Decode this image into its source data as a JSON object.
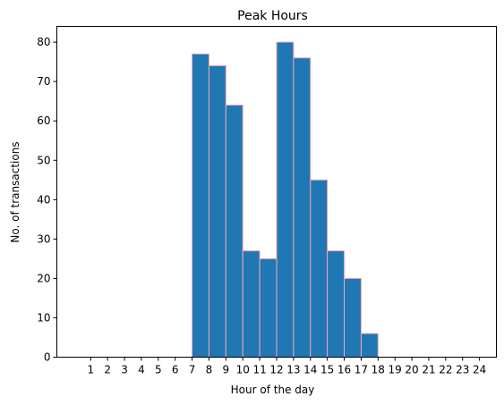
{
  "chart_data": {
    "type": "bar",
    "title": "Peak Hours",
    "xlabel": "Hour of the day",
    "ylabel": "No. of transactions",
    "categories": [
      "7",
      "8",
      "9",
      "10",
      "11",
      "12",
      "13",
      "14",
      "15",
      "16",
      "17"
    ],
    "values": [
      77,
      74,
      64,
      27,
      25,
      80,
      76,
      45,
      27,
      20,
      6
    ],
    "bin_edges": [
      7,
      8,
      9,
      10,
      11,
      12,
      13,
      14,
      15,
      16,
      17,
      18
    ],
    "x_ticks": [
      "1",
      "2",
      "3",
      "4",
      "5",
      "6",
      "7",
      "8",
      "9",
      "10",
      "11",
      "12",
      "13",
      "14",
      "15",
      "16",
      "17",
      "18",
      "19",
      "20",
      "21",
      "22",
      "23",
      "24"
    ],
    "y_ticks": [
      "0",
      "10",
      "20",
      "30",
      "40",
      "50",
      "60",
      "70",
      "80"
    ],
    "xlim": [
      -1,
      25
    ],
    "ylim": [
      0,
      84
    ],
    "grid": false,
    "bar_color": "#1f77b4",
    "edge_color": "#f4a6b4"
  }
}
